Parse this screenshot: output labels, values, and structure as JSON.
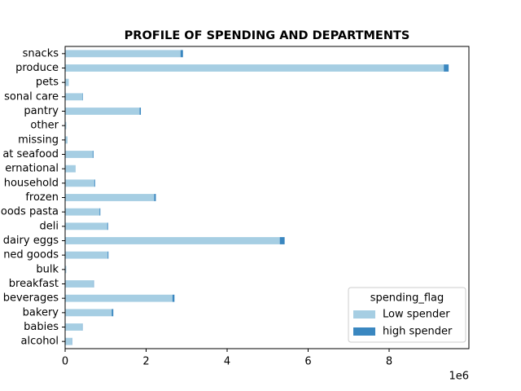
{
  "chart_data": {
    "type": "barh_stacked",
    "title": "PROFILE OF SPENDING AND DEPARTMENTS",
    "categories": [
      "alcohol",
      "babies",
      "bakery",
      "beverages",
      "breakfast",
      "bulk",
      "ned goods",
      "dairy eggs",
      "deli",
      "oods pasta",
      "frozen",
      "household",
      "ernational",
      "at seafood",
      "missing",
      "other",
      "pantry",
      "sonal care",
      "pets",
      "produce",
      "snacks"
    ],
    "series": [
      {
        "name": "Low spender",
        "color": "#a6cee3",
        "values": [
          0.16,
          0.42,
          1.15,
          2.65,
          0.7,
          0.03,
          1.05,
          5.3,
          1.04,
          0.85,
          2.2,
          0.72,
          0.26,
          0.68,
          0.06,
          0.03,
          1.84,
          0.43,
          0.09,
          9.35,
          2.85
        ]
      },
      {
        "name": "high spender",
        "color": "#3a87c0",
        "values": [
          0.01,
          0.01,
          0.04,
          0.05,
          0.01,
          0,
          0.02,
          0.12,
          0.02,
          0.02,
          0.04,
          0.02,
          0,
          0.02,
          0,
          0,
          0.03,
          0.01,
          0,
          0.12,
          0.06
        ]
      }
    ],
    "xlim": [
      0,
      9.97
    ],
    "xticks": [
      0,
      2,
      4,
      6,
      8
    ],
    "x_offset_label": "1e6",
    "legend_title": "spending_flag",
    "legend_position": "lower right"
  }
}
